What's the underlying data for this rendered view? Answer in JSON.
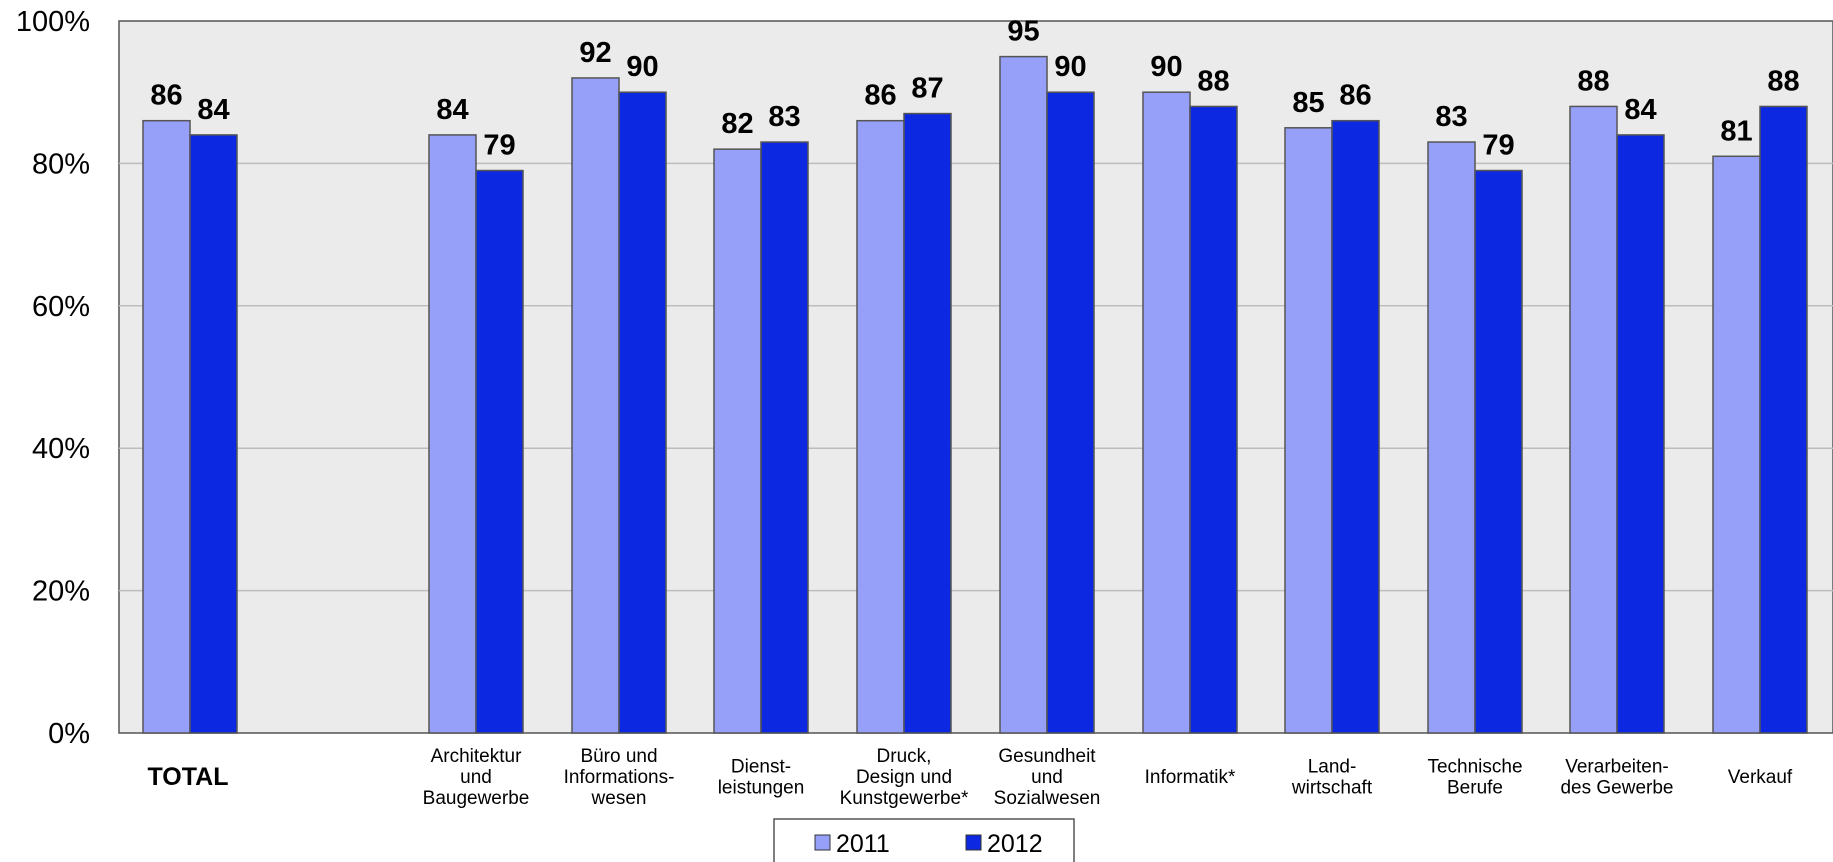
{
  "chart_data": {
    "type": "bar",
    "categories": [
      {
        "lines": [
          "TOTAL"
        ],
        "bold": true
      },
      {
        "lines": [
          "Architektur",
          "und",
          "Baugewerbe"
        ]
      },
      {
        "lines": [
          "Büro und",
          "Informations-",
          "wesen"
        ]
      },
      {
        "lines": [
          "Dienst-",
          "leistungen"
        ]
      },
      {
        "lines": [
          "Druck,",
          "Design und",
          "Kunstgewerbe*"
        ]
      },
      {
        "lines": [
          "Gesundheit",
          "und",
          "Sozialwesen"
        ]
      },
      {
        "lines": [
          "Informatik*"
        ]
      },
      {
        "lines": [
          "Land-",
          "wirtschaft"
        ]
      },
      {
        "lines": [
          "Technische",
          "Berufe"
        ]
      },
      {
        "lines": [
          "Verarbeiten-",
          "des Gewerbe"
        ]
      },
      {
        "lines": [
          "Verkauf"
        ]
      }
    ],
    "series": [
      {
        "name": "2011",
        "color": "#96a0f8",
        "values": [
          86,
          84,
          92,
          82,
          86,
          95,
          90,
          85,
          83,
          88,
          81
        ]
      },
      {
        "name": "2012",
        "color": "#0c28e0",
        "values": [
          84,
          79,
          90,
          83,
          87,
          90,
          88,
          86,
          79,
          84,
          88
        ]
      }
    ],
    "ylim": [
      0,
      100
    ],
    "yticks": [
      "0%",
      "20%",
      "40%",
      "60%",
      "80%",
      "100%"
    ],
    "grid": true,
    "legend_position": "bottom-center",
    "plot_background": "#ebebeb"
  }
}
